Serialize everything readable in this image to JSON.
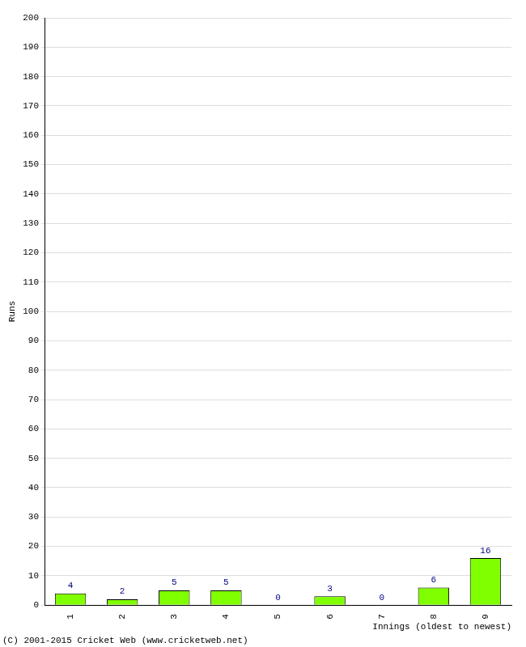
{
  "chart_data": {
    "type": "bar",
    "categories": [
      "1",
      "2",
      "3",
      "4",
      "5",
      "6",
      "7",
      "8",
      "9"
    ],
    "values": [
      4,
      2,
      5,
      5,
      0,
      3,
      0,
      6,
      16
    ],
    "color": "#80ff00",
    "x_label": "Innings (oldest to newest)",
    "y_label": "Runs",
    "ylim": [
      0,
      200
    ],
    "yticks": [
      0,
      10,
      20,
      30,
      40,
      50,
      60,
      70,
      80,
      90,
      100,
      110,
      120,
      130,
      140,
      150,
      160,
      170,
      180,
      190,
      200
    ],
    "grid": true,
    "data_labels": true,
    "annotations": [
      "(C) 2001-2015 Cricket Web (www.cricketweb.net)"
    ]
  }
}
